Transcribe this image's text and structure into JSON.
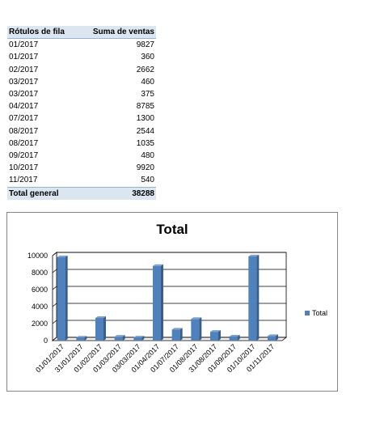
{
  "pivot": {
    "header": [
      "Rótulos de fila",
      "Suma de ventas"
    ],
    "rows": [
      [
        "01/2017",
        "9827"
      ],
      [
        "01/2017",
        "360"
      ],
      [
        "02/2017",
        "2662"
      ],
      [
        "03/2017",
        "460"
      ],
      [
        "03/2017",
        "375"
      ],
      [
        "04/2017",
        "8785"
      ],
      [
        "07/2017",
        "1300"
      ],
      [
        "08/2017",
        "2544"
      ],
      [
        "08/2017",
        "1035"
      ],
      [
        "09/2017",
        "480"
      ],
      [
        "10/2017",
        "9920"
      ],
      [
        "11/2017",
        "540"
      ]
    ],
    "total": [
      "Total general",
      "38288"
    ]
  },
  "chart_data": {
    "type": "bar",
    "title": "Total",
    "categories": [
      "01/01/2017",
      "31/01/2017",
      "01/02/2017",
      "01/03/2017",
      "03/03/2017",
      "01/04/2017",
      "01/07/2017",
      "01/08/2017",
      "31/08/2017",
      "01/09/2017",
      "01/10/2017",
      "01/11/2017"
    ],
    "series": [
      {
        "name": "Total",
        "values": [
          9827,
          360,
          2662,
          460,
          375,
          8785,
          1300,
          2544,
          1035,
          480,
          9920,
          540
        ]
      }
    ],
    "yticks": [
      "0",
      "2000",
      "4000",
      "6000",
      "8000",
      "10000"
    ],
    "ylim": [
      0,
      10000
    ],
    "legend_position": "right",
    "bar_color": "#4f81bd",
    "bar_side_color": "#385d8a",
    "bar_top_color": "#7ba0cd"
  }
}
